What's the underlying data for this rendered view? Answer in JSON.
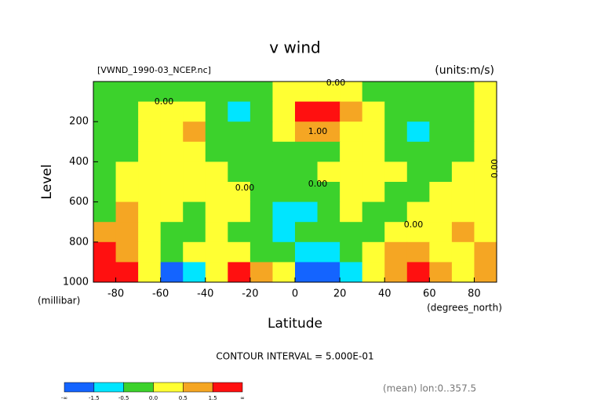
{
  "chart_data": {
    "type": "contour",
    "title": "v wind",
    "file_label": "[VWND_1990-03_NCEP.nc]",
    "units_label": "(units:m/s)",
    "y_label": "Level",
    "y_unit": "(millibar)",
    "x_label": "Latitude",
    "x_unit": "(degrees_north)",
    "contour_interval": "CONTOUR INTERVAL = 5.000E-01",
    "footnote": "(mean) lon:0..357.5",
    "xlim": [
      -90,
      90
    ],
    "ylim": [
      1000,
      0
    ],
    "xticks": [
      -80,
      -60,
      -40,
      -20,
      0,
      20,
      40,
      60,
      80
    ],
    "yticks": [
      200,
      400,
      600,
      800,
      1000
    ],
    "x": [
      -85,
      -75,
      -65,
      -55,
      -45,
      -35,
      -25,
      -15,
      -5,
      5,
      15,
      25,
      35,
      45,
      55,
      65,
      75,
      85
    ],
    "y": [
      50,
      150,
      250,
      350,
      450,
      550,
      650,
      750,
      850,
      950
    ],
    "z": [
      [
        -0.2,
        -0.2,
        -0.2,
        -0.2,
        -0.2,
        -0.2,
        -0.2,
        -0.2,
        0.2,
        0.3,
        0.3,
        0.2,
        -0.2,
        -0.2,
        -0.2,
        -0.2,
        -0.2,
        0.2
      ],
      [
        -0.2,
        -0.2,
        0.2,
        0.2,
        0.2,
        -0.2,
        -0.7,
        -0.3,
        0.2,
        1.6,
        1.6,
        0.8,
        0.2,
        -0.2,
        -0.2,
        -0.2,
        -0.2,
        0.2
      ],
      [
        -0.2,
        -0.2,
        0.2,
        0.2,
        0.6,
        -0.2,
        -0.2,
        -0.2,
        0.2,
        0.6,
        0.7,
        0.3,
        0.2,
        -0.2,
        -0.6,
        -0.2,
        -0.2,
        0.2
      ],
      [
        -0.2,
        -0.2,
        0.2,
        0.2,
        0.2,
        -0.2,
        -0.2,
        -0.2,
        -0.2,
        -0.2,
        -0.2,
        0.2,
        0.2,
        -0.2,
        -0.2,
        -0.2,
        -0.2,
        0.2
      ],
      [
        -0.2,
        0.2,
        0.2,
        0.2,
        0.2,
        0.2,
        -0.2,
        -0.2,
        -0.2,
        -0.2,
        0.2,
        0.2,
        0.2,
        0.2,
        -0.2,
        -0.2,
        0.2,
        0.2
      ],
      [
        -0.2,
        0.2,
        0.2,
        0.2,
        0.2,
        0.2,
        0.2,
        -0.2,
        -0.2,
        -0.2,
        -0.2,
        0.2,
        0.2,
        -0.2,
        -0.2,
        0.2,
        0.2,
        0.2
      ],
      [
        -0.2,
        0.6,
        0.2,
        0.2,
        -0.2,
        0.2,
        0.2,
        -0.2,
        -0.7,
        -0.7,
        -0.2,
        0.2,
        -0.2,
        -0.2,
        0.2,
        0.2,
        0.2,
        0.2
      ],
      [
        0.6,
        0.6,
        0.2,
        -0.2,
        -0.2,
        0.2,
        -0.2,
        -0.2,
        -0.7,
        -0.2,
        -0.2,
        -0.2,
        -0.2,
        0.2,
        0.2,
        0.2,
        0.6,
        0.2
      ],
      [
        1.8,
        0.6,
        0.2,
        -0.2,
        0.2,
        0.2,
        0.2,
        -0.2,
        -0.2,
        -0.6,
        -0.6,
        -0.2,
        0.2,
        0.6,
        0.6,
        0.2,
        0.2,
        0.6
      ],
      [
        1.8,
        1.8,
        0.2,
        -1.8,
        -0.8,
        0.2,
        1.6,
        0.6,
        0.2,
        -1.8,
        -1.8,
        -0.6,
        0.2,
        0.6,
        1.6,
        0.6,
        0.2,
        0.6
      ]
    ],
    "levels": [
      -1.5,
      -0.5,
      {
        "value": 0,
        "label": "0.0"
      },
      0.5,
      1.5
    ],
    "low_label": "-∞",
    "high_label": "∞",
    "colors": [
      "#1464ff",
      "#00e5ff",
      "#3cd22c",
      "#ffff33",
      "#f5a623",
      "#ff1010"
    ],
    "contour_labels": [
      "0.00",
      "0.00",
      "1.00",
      "0.00",
      "0.00",
      "0.00",
      "0.00"
    ]
  }
}
